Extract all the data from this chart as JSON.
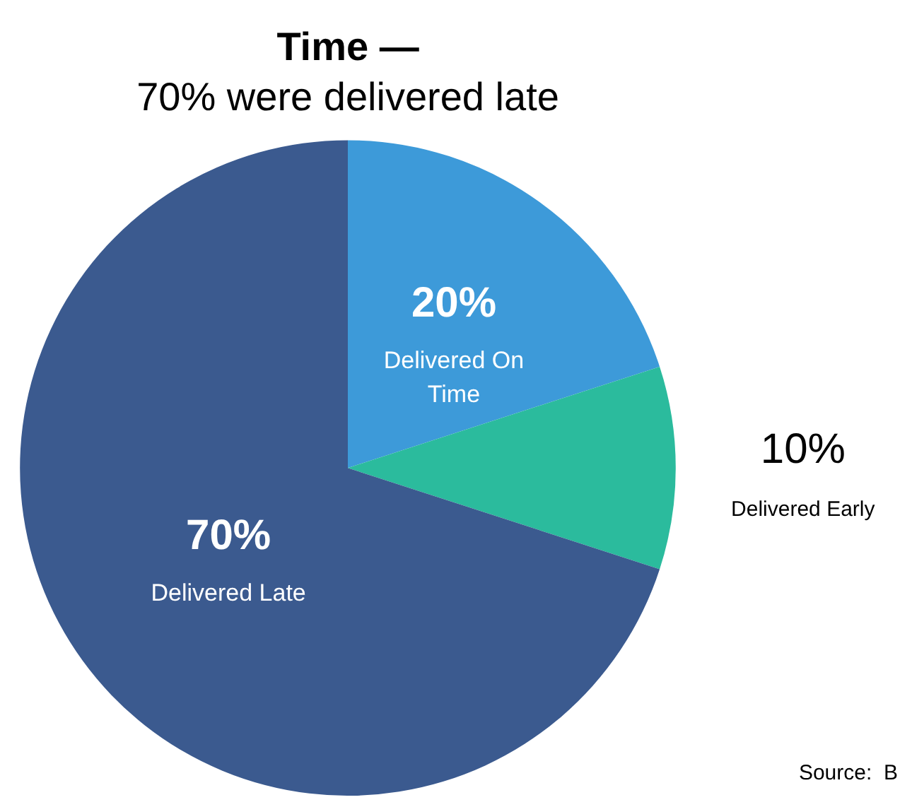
{
  "chart_data": {
    "type": "pie",
    "title": "Time —",
    "subtitle": "70% were delivered late",
    "categories": [
      "Delivered On Time",
      "Delivered Early",
      "Delivered Late"
    ],
    "values": [
      20,
      10,
      70
    ],
    "colors": [
      "#3d9ad9",
      "#2bbb9d",
      "#3b5a8f"
    ],
    "value_labels": [
      "20%",
      "10%",
      "70%"
    ],
    "legend": false,
    "annotations": [
      "Source:  B"
    ]
  }
}
